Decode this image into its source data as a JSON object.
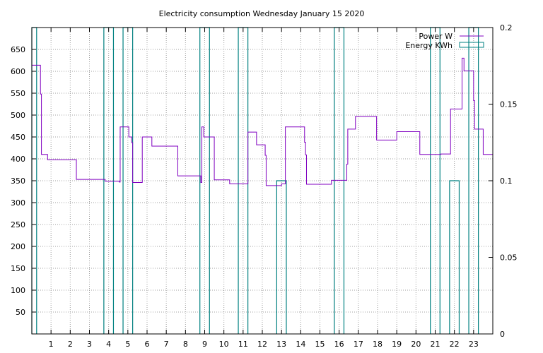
{
  "chart_data": {
    "type": "line",
    "title": "Electricity consumption Wednesday January 15 2020",
    "xlim": [
      0,
      24
    ],
    "ylim": [
      0,
      700
    ],
    "y2lim": [
      0,
      0.2
    ],
    "grid": true,
    "legend_position": "top-right",
    "x_ticks": [
      "1",
      "2",
      "3",
      "4",
      "5",
      "6",
      "7",
      "8",
      "9",
      "10",
      "11",
      "12",
      "13",
      "14",
      "15",
      "16",
      "17",
      "18",
      "19",
      "20",
      "21",
      "22",
      "23"
    ],
    "y_ticks": [
      "50",
      "100",
      "150",
      "200",
      "250",
      "300",
      "350",
      "400",
      "450",
      "500",
      "550",
      "600",
      "650"
    ],
    "y2_ticks": [
      "0",
      "0.05",
      "0.1",
      "0.15",
      "0.2"
    ],
    "series": [
      {
        "name": "Power W",
        "axis": "left",
        "color": "#8000c0",
        "style": "step",
        "points": [
          [
            0,
            614
          ],
          [
            0.45,
            614
          ],
          [
            0.45,
            548
          ],
          [
            0.5,
            548
          ],
          [
            0.5,
            410
          ],
          [
            0.82,
            410
          ],
          [
            0.82,
            398
          ],
          [
            2.32,
            398
          ],
          [
            2.32,
            353
          ],
          [
            3.82,
            353
          ],
          [
            3.82,
            349
          ],
          [
            4.55,
            349
          ],
          [
            4.55,
            347
          ],
          [
            4.6,
            347
          ],
          [
            4.6,
            473
          ],
          [
            5.05,
            473
          ],
          [
            5.05,
            450
          ],
          [
            5.2,
            450
          ],
          [
            5.2,
            437
          ],
          [
            5.25,
            437
          ],
          [
            5.25,
            346
          ],
          [
            5.75,
            346
          ],
          [
            5.75,
            450
          ],
          [
            6.25,
            450
          ],
          [
            6.25,
            429
          ],
          [
            7.6,
            429
          ],
          [
            7.6,
            361
          ],
          [
            8.8,
            361
          ],
          [
            8.8,
            346
          ],
          [
            8.85,
            346
          ],
          [
            8.85,
            473
          ],
          [
            8.95,
            473
          ],
          [
            8.95,
            450
          ],
          [
            9.5,
            450
          ],
          [
            9.5,
            352
          ],
          [
            10.3,
            352
          ],
          [
            10.3,
            343
          ],
          [
            11.25,
            343
          ],
          [
            11.25,
            461
          ],
          [
            11.7,
            461
          ],
          [
            11.7,
            432
          ],
          [
            12.15,
            432
          ],
          [
            12.15,
            408
          ],
          [
            12.2,
            408
          ],
          [
            12.2,
            339
          ],
          [
            13.0,
            339
          ],
          [
            13.0,
            343
          ],
          [
            13.2,
            343
          ],
          [
            13.2,
            473
          ],
          [
            14.2,
            473
          ],
          [
            14.2,
            438
          ],
          [
            14.25,
            438
          ],
          [
            14.25,
            409
          ],
          [
            14.3,
            409
          ],
          [
            14.3,
            342
          ],
          [
            15.6,
            342
          ],
          [
            15.6,
            351
          ],
          [
            16.4,
            351
          ],
          [
            16.4,
            388
          ],
          [
            16.45,
            388
          ],
          [
            16.45,
            468
          ],
          [
            16.85,
            468
          ],
          [
            16.85,
            497
          ],
          [
            17.95,
            497
          ],
          [
            17.95,
            443
          ],
          [
            19.0,
            443
          ],
          [
            19.0,
            462
          ],
          [
            20.2,
            462
          ],
          [
            20.2,
            410
          ],
          [
            21.3,
            410
          ],
          [
            21.3,
            411
          ],
          [
            21.8,
            411
          ],
          [
            21.8,
            514
          ],
          [
            22.4,
            514
          ],
          [
            22.4,
            630
          ],
          [
            22.5,
            630
          ],
          [
            22.5,
            601
          ],
          [
            23.0,
            601
          ],
          [
            23.0,
            533
          ],
          [
            23.05,
            533
          ],
          [
            23.05,
            468
          ],
          [
            23.5,
            468
          ],
          [
            23.5,
            410
          ],
          [
            24,
            410
          ]
        ]
      },
      {
        "name": "Energy KWh",
        "axis": "right",
        "color": "#008080",
        "style": "bars",
        "bars": [
          {
            "x0": 0.0,
            "x1": 0.25,
            "value": 0.2
          },
          {
            "x0": 3.75,
            "x1": 4.25,
            "value": 0.2
          },
          {
            "x0": 4.75,
            "x1": 5.25,
            "value": 0.2
          },
          {
            "x0": 8.75,
            "x1": 9.25,
            "value": 0.2
          },
          {
            "x0": 10.75,
            "x1": 11.25,
            "value": 0.2
          },
          {
            "x0": 12.75,
            "x1": 13.25,
            "value": 0.1
          },
          {
            "x0": 15.75,
            "x1": 16.25,
            "value": 0.2
          },
          {
            "x0": 20.75,
            "x1": 21.25,
            "value": 0.2
          },
          {
            "x0": 21.75,
            "x1": 22.25,
            "value": 0.1
          },
          {
            "x0": 22.75,
            "x1": 23.25,
            "value": 0.2
          }
        ]
      }
    ]
  }
}
